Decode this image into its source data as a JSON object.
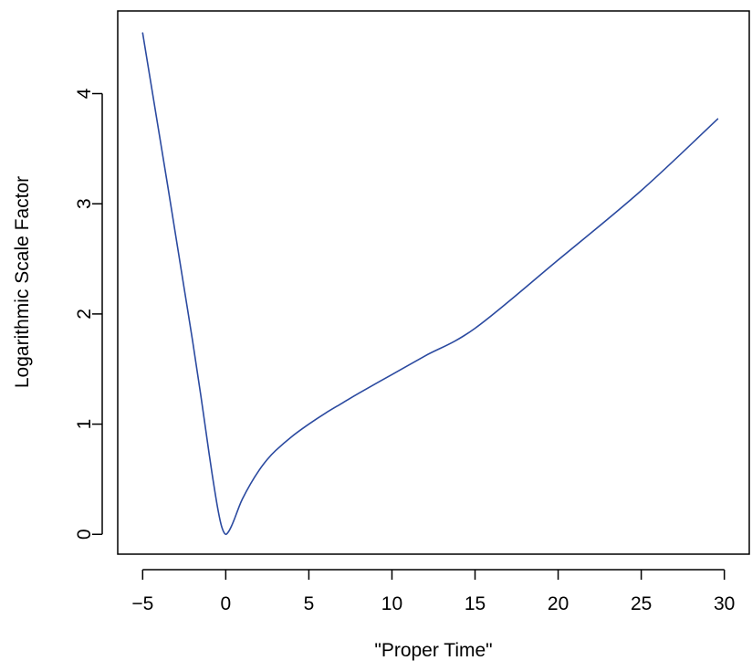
{
  "chart_data": {
    "type": "line",
    "title": "",
    "xlabel": "\"Proper Time\"",
    "ylabel": "Logarithmic Scale Factor",
    "xlim": [
      -6.5,
      31.5
    ],
    "ylim": [
      -0.18,
      4.75
    ],
    "x_ticks": [
      -5,
      0,
      5,
      10,
      15,
      20,
      25,
      30
    ],
    "x_tick_labels": [
      "−5",
      "0",
      "5",
      "10",
      "15",
      "20",
      "25",
      "30"
    ],
    "y_ticks": [
      0,
      1,
      2,
      3,
      4
    ],
    "y_tick_labels": [
      "0",
      "1",
      "2",
      "3",
      "4"
    ],
    "grid": false,
    "legend": "none",
    "series": [
      {
        "color": "#2b4aa0",
        "x": [
          -5,
          -4.5,
          -4,
          -3.5,
          -3,
          -2.5,
          -2,
          -1.5,
          -1,
          -0.75,
          -0.5,
          -0.3,
          -0.15,
          0,
          0.15,
          0.3,
          0.5,
          0.75,
          1,
          1.5,
          2,
          2.5,
          3,
          4,
          5,
          6,
          7,
          8,
          10,
          12,
          15,
          20,
          25,
          29.6
        ],
        "y": [
          4.55,
          4.09,
          3.63,
          3.17,
          2.7,
          2.23,
          1.76,
          1.26,
          0.73,
          0.48,
          0.25,
          0.1,
          0.03,
          0.0,
          0.02,
          0.06,
          0.13,
          0.23,
          0.32,
          0.46,
          0.58,
          0.68,
          0.76,
          0.89,
          1.0,
          1.1,
          1.19,
          1.28,
          1.45,
          1.62,
          1.87,
          2.49,
          3.12,
          3.77
        ]
      }
    ]
  }
}
